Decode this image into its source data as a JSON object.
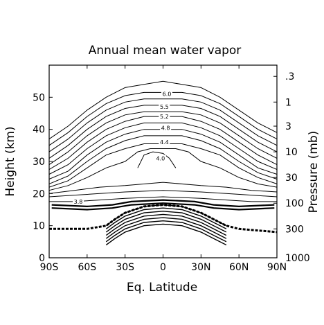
{
  "chart_data": {
    "type": "contour",
    "title": "Annual mean water vapor",
    "xlabel": "Eq. Latitude",
    "ylabel_left": "Height (km)",
    "ylabel_right": "Pressure (mb)",
    "xlim": [
      -90,
      90
    ],
    "ylim": [
      0,
      60
    ],
    "x_ticks": [
      -90,
      -60,
      -30,
      0,
      30,
      60,
      90
    ],
    "x_tick_labels": [
      "90S",
      "60S",
      "30S",
      "0",
      "30N",
      "60N",
      "90N"
    ],
    "y_ticks": [
      0,
      10,
      20,
      30,
      40,
      50
    ],
    "y_tick_labels": [
      "0",
      "10",
      "20",
      "30",
      "40",
      "50"
    ],
    "right_ticks": [
      {
        "label": ".3",
        "height_km": 56.5
      },
      {
        "label": "1",
        "height_km": 48.5
      },
      {
        "label": "3",
        "height_km": 41
      },
      {
        "label": "10",
        "height_km": 33
      },
      {
        "label": "30",
        "height_km": 25
      },
      {
        "label": "100",
        "height_km": 17
      },
      {
        "label": "300",
        "height_km": 9
      },
      {
        "label": "1000",
        "height_km": 0
      }
    ],
    "contour_labels": [
      {
        "text": "6.0",
        "lat": 3,
        "height_km": 51
      },
      {
        "text": "5.5",
        "lat": 1,
        "height_km": 47
      },
      {
        "text": "5.2",
        "lat": 1,
        "height_km": 44
      },
      {
        "text": "4.8",
        "lat": 2,
        "height_km": 40.5
      },
      {
        "text": "4.4",
        "lat": 1,
        "height_km": 36
      },
      {
        "text": "4.0",
        "lat": -2,
        "height_km": 31
      },
      {
        "text": "3.8",
        "lat": -67,
        "height_km": 17.5
      }
    ],
    "contours": [
      {
        "value": 6.2,
        "points": [
          [
            -90,
            37
          ],
          [
            -75,
            41
          ],
          [
            -60,
            46
          ],
          [
            -45,
            50
          ],
          [
            -30,
            53
          ],
          [
            -15,
            54
          ],
          [
            0,
            55
          ],
          [
            15,
            54
          ],
          [
            30,
            53
          ],
          [
            45,
            50
          ],
          [
            60,
            46
          ],
          [
            75,
            42
          ],
          [
            90,
            39
          ]
        ]
      },
      {
        "value": 6.0,
        "points": [
          [
            -90,
            35
          ],
          [
            -75,
            39
          ],
          [
            -60,
            44
          ],
          [
            -45,
            48
          ],
          [
            -30,
            50.5
          ],
          [
            -15,
            51.5
          ],
          [
            0,
            51.5
          ],
          [
            15,
            51.5
          ],
          [
            30,
            50.5
          ],
          [
            45,
            48
          ],
          [
            60,
            44
          ],
          [
            75,
            40
          ],
          [
            90,
            37
          ]
        ]
      },
      {
        "value": 5.8,
        "points": [
          [
            -90,
            33
          ],
          [
            -75,
            37
          ],
          [
            -60,
            42
          ],
          [
            -45,
            46
          ],
          [
            -30,
            48.5
          ],
          [
            -15,
            49.5
          ],
          [
            0,
            49.5
          ],
          [
            15,
            49.5
          ],
          [
            30,
            48.5
          ],
          [
            45,
            46
          ],
          [
            60,
            42
          ],
          [
            75,
            38
          ],
          [
            90,
            35
          ]
        ]
      },
      {
        "value": 5.5,
        "points": [
          [
            -90,
            31
          ],
          [
            -75,
            35
          ],
          [
            -60,
            40
          ],
          [
            -45,
            44
          ],
          [
            -30,
            46.5
          ],
          [
            -15,
            47.5
          ],
          [
            0,
            47.5
          ],
          [
            15,
            47.5
          ],
          [
            30,
            46.5
          ],
          [
            45,
            44
          ],
          [
            60,
            40
          ],
          [
            75,
            36
          ],
          [
            90,
            33
          ]
        ]
      },
      {
        "value": 5.3,
        "points": [
          [
            -90,
            29
          ],
          [
            -75,
            33
          ],
          [
            -60,
            38
          ],
          [
            -45,
            42
          ],
          [
            -30,
            44.5
          ],
          [
            -15,
            45.5
          ],
          [
            0,
            45.5
          ],
          [
            15,
            45.5
          ],
          [
            30,
            44.5
          ],
          [
            45,
            42
          ],
          [
            60,
            38
          ],
          [
            75,
            34
          ],
          [
            90,
            31
          ]
        ]
      },
      {
        "value": 5.2,
        "points": [
          [
            -90,
            27.5
          ],
          [
            -75,
            31
          ],
          [
            -60,
            36
          ],
          [
            -45,
            40
          ],
          [
            -30,
            42.5
          ],
          [
            -15,
            44
          ],
          [
            0,
            44
          ],
          [
            15,
            44
          ],
          [
            30,
            42.5
          ],
          [
            45,
            40
          ],
          [
            60,
            36
          ],
          [
            75,
            32
          ],
          [
            90,
            29
          ]
        ]
      },
      {
        "value": 5.0,
        "points": [
          [
            -90,
            26
          ],
          [
            -75,
            29
          ],
          [
            -60,
            34
          ],
          [
            -45,
            38
          ],
          [
            -30,
            40.5
          ],
          [
            -15,
            42
          ],
          [
            0,
            42
          ],
          [
            15,
            42
          ],
          [
            30,
            40.5
          ],
          [
            45,
            38
          ],
          [
            60,
            34
          ],
          [
            75,
            30
          ],
          [
            90,
            27.5
          ]
        ]
      },
      {
        "value": 4.8,
        "points": [
          [
            -90,
            24.5
          ],
          [
            -75,
            27
          ],
          [
            -60,
            32
          ],
          [
            -45,
            36
          ],
          [
            -30,
            38.5
          ],
          [
            -15,
            40
          ],
          [
            0,
            40
          ],
          [
            15,
            40
          ],
          [
            30,
            38.5
          ],
          [
            45,
            36
          ],
          [
            60,
            32
          ],
          [
            75,
            28
          ],
          [
            90,
            26
          ]
        ]
      },
      {
        "value": 4.6,
        "points": [
          [
            -90,
            23
          ],
          [
            -75,
            25.5
          ],
          [
            -60,
            30
          ],
          [
            -45,
            34
          ],
          [
            -30,
            36.5
          ],
          [
            -15,
            38
          ],
          [
            0,
            38
          ],
          [
            15,
            38
          ],
          [
            30,
            36.5
          ],
          [
            45,
            34
          ],
          [
            60,
            30
          ],
          [
            75,
            26.5
          ],
          [
            90,
            24.5
          ]
        ]
      },
      {
        "value": 4.4,
        "points": [
          [
            -90,
            22
          ],
          [
            -75,
            24
          ],
          [
            -60,
            28
          ],
          [
            -45,
            32
          ],
          [
            -30,
            34
          ],
          [
            -15,
            35.5
          ],
          [
            0,
            35.5
          ],
          [
            15,
            35.5
          ],
          [
            30,
            34
          ],
          [
            45,
            32
          ],
          [
            60,
            28
          ],
          [
            75,
            25
          ],
          [
            90,
            23
          ]
        ]
      },
      {
        "value": 4.2,
        "points": [
          [
            -90,
            21
          ],
          [
            -75,
            22.5
          ],
          [
            -60,
            25
          ],
          [
            -45,
            28
          ],
          [
            -30,
            30
          ],
          [
            -20,
            33
          ],
          [
            -10,
            34
          ],
          [
            0,
            34
          ],
          [
            10,
            34
          ],
          [
            20,
            33
          ],
          [
            30,
            30
          ],
          [
            45,
            28
          ],
          [
            60,
            25
          ],
          [
            75,
            23
          ],
          [
            90,
            22
          ]
        ]
      },
      {
        "value": 4.0,
        "points": [
          [
            -20,
            28
          ],
          [
            -15,
            32
          ],
          [
            -8,
            33
          ],
          [
            0,
            32.5
          ],
          [
            5,
            31
          ],
          [
            10,
            28
          ]
        ]
      },
      {
        "value": 4.1,
        "points": [
          [
            -90,
            20
          ],
          [
            -70,
            21
          ],
          [
            -50,
            22
          ],
          [
            -30,
            22.5
          ],
          [
            0,
            23.5
          ],
          [
            30,
            22.5
          ],
          [
            50,
            22
          ],
          [
            70,
            21
          ],
          [
            90,
            20.5
          ]
        ]
      },
      {
        "value": 3.9,
        "points": [
          [
            -90,
            19
          ],
          [
            -70,
            19.5
          ],
          [
            -50,
            20
          ],
          [
            -30,
            20.5
          ],
          [
            0,
            21
          ],
          [
            30,
            20.5
          ],
          [
            50,
            20
          ],
          [
            70,
            19.5
          ],
          [
            90,
            19
          ]
        ]
      },
      {
        "value": 3.8,
        "points": [
          [
            -90,
            17.5
          ],
          [
            -70,
            17.5
          ],
          [
            -50,
            18
          ],
          [
            -30,
            18.5
          ],
          [
            0,
            19
          ],
          [
            30,
            18.5
          ],
          [
            50,
            18
          ],
          [
            70,
            17.5
          ],
          [
            90,
            17.5
          ]
        ]
      }
    ],
    "tropopause_bands": [
      {
        "points": [
          [
            -88,
            16.5
          ],
          [
            -60,
            16
          ],
          [
            -40,
            16.5
          ],
          [
            -25,
            17.5
          ],
          [
            0,
            18
          ],
          [
            25,
            17.5
          ],
          [
            40,
            16.5
          ],
          [
            60,
            16
          ],
          [
            88,
            16.5
          ]
        ]
      },
      {
        "points": [
          [
            -88,
            15.5
          ],
          [
            -60,
            15
          ],
          [
            -40,
            15.5
          ],
          [
            -25,
            16.5
          ],
          [
            0,
            17
          ],
          [
            25,
            16.5
          ],
          [
            40,
            15.5
          ],
          [
            60,
            15
          ],
          [
            88,
            15.5
          ]
        ]
      }
    ],
    "blocked_region": {
      "points": [
        [
          -90,
          9
        ],
        [
          -60,
          9
        ],
        [
          -45,
          10
        ],
        [
          -38,
          12
        ],
        [
          -30,
          14
        ],
        [
          -15,
          16
        ],
        [
          0,
          16.5
        ],
        [
          15,
          16
        ],
        [
          30,
          14
        ],
        [
          40,
          12
        ],
        [
          50,
          10
        ],
        [
          60,
          9
        ],
        [
          90,
          8
        ]
      ]
    },
    "grid": false
  }
}
